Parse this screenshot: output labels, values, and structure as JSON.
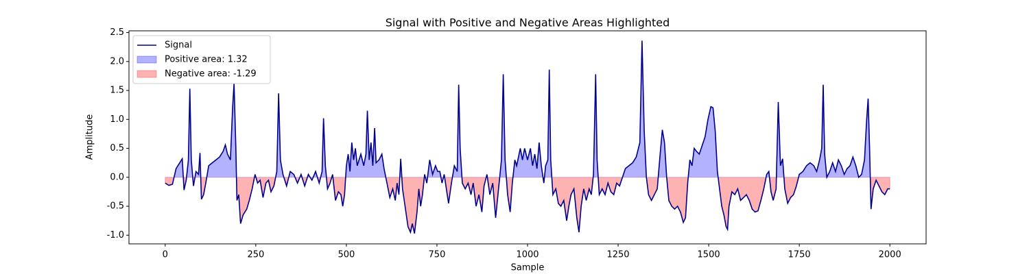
{
  "chart_data": {
    "type": "line",
    "title": "Signal with Positive and Negative Areas Highlighted",
    "x_label": "Sample",
    "y_label": "Amplitude",
    "xlim": [
      -100,
      2100
    ],
    "ylim": [
      -1.15,
      2.53
    ],
    "xticks": [
      0,
      250,
      500,
      750,
      1000,
      1250,
      1500,
      1750,
      2000
    ],
    "yticks": [
      {
        "value": -1,
        "label": "-1.0"
      },
      -0.5,
      {
        "value": 0,
        "label": "0.0"
      },
      0.5,
      {
        "value": 1,
        "label": "1.0"
      },
      1.5,
      {
        "value": 2,
        "label": "2.0"
      },
      2.5
    ],
    "legend": "upper left",
    "series": [
      {
        "name": "Signal",
        "color": "#00008b",
        "x": [
          0,
          10,
          20,
          30,
          40,
          47,
          52,
          58,
          64,
          68,
          72,
          78,
          85,
          92,
          96,
          100,
          106,
          112,
          120,
          130,
          140,
          150,
          160,
          166,
          172,
          180,
          186,
          190,
          195,
          198,
          203,
          208,
          215,
          225,
          232,
          240,
          248,
          255,
          262,
          270,
          278,
          285,
          292,
          300,
          308,
          313,
          318,
          325,
          335,
          345,
          355,
          365,
          375,
          385,
          395,
          405,
          415,
          425,
          433,
          437,
          442,
          448,
          455,
          462,
          470,
          478,
          485,
          490,
          495,
          500,
          505,
          510,
          515,
          520,
          525,
          530,
          540,
          548,
          554,
          558,
          563,
          568,
          573,
          578,
          582,
          590,
          598,
          604,
          612,
          620,
          628,
          635,
          640,
          645,
          650,
          655,
          662,
          670,
          677,
          682,
          688,
          695,
          700,
          705,
          710,
          716,
          722,
          730,
          738,
          746,
          752,
          758,
          764,
          770,
          776,
          782,
          790,
          798,
          806,
          810,
          814,
          820,
          828,
          836,
          844,
          850,
          858,
          866,
          874,
          880,
          888,
          896,
          904,
          912,
          920,
          928,
          933,
          938,
          945,
          952,
          958,
          965,
          970,
          980,
          986,
          992,
          1000,
          1008,
          1014,
          1020,
          1026,
          1032,
          1038,
          1045,
          1050,
          1056,
          1060,
          1064,
          1070,
          1078,
          1085,
          1092,
          1100,
          1108,
          1114,
          1120,
          1128,
          1136,
          1142,
          1148,
          1155,
          1162,
          1170,
          1176,
          1182,
          1188,
          1192,
          1198,
          1206,
          1214,
          1222,
          1230,
          1238,
          1246,
          1254,
          1262,
          1270,
          1280,
          1290,
          1300,
          1310,
          1316,
          1322,
          1328,
          1334,
          1342,
          1350,
          1358,
          1366,
          1372,
          1378,
          1384,
          1390,
          1398,
          1406,
          1414,
          1422,
          1430,
          1436,
          1442,
          1448,
          1454,
          1460,
          1466,
          1474,
          1482,
          1490,
          1498,
          1506,
          1512,
          1518,
          1524,
          1530,
          1536,
          1542,
          1548,
          1552,
          1556,
          1564,
          1572,
          1580,
          1588,
          1596,
          1604,
          1612,
          1620,
          1628,
          1636,
          1644,
          1652,
          1660,
          1666,
          1672,
          1678,
          1686,
          1692,
          1698,
          1704,
          1710,
          1718,
          1726,
          1734,
          1742,
          1750,
          1760,
          1770,
          1780,
          1790,
          1798,
          1806,
          1812,
          1816,
          1820,
          1826,
          1834,
          1842,
          1850,
          1858,
          1866,
          1874,
          1882,
          1890,
          1898,
          1906,
          1914,
          1922,
          1930,
          1936,
          1940,
          1944,
          1948,
          1954,
          1962,
          1970,
          1978,
          1986,
          1994,
          2000
        ],
        "values": [
          -0.1,
          -0.14,
          -0.12,
          0.15,
          0.25,
          0.32,
          -0.22,
          -0.05,
          0.3,
          1.53,
          0.3,
          -0.15,
          0.1,
          0.05,
          0.42,
          -0.38,
          -0.3,
          -0.1,
          0.2,
          0.25,
          0.3,
          0.35,
          0.45,
          0.56,
          0.4,
          0.3,
          1.2,
          1.62,
          0.5,
          -0.4,
          -0.3,
          -0.8,
          -0.65,
          -0.55,
          -0.4,
          -0.2,
          0.05,
          -0.1,
          -0.05,
          -0.35,
          -0.1,
          -0.05,
          -0.25,
          -0.15,
          0.1,
          1.45,
          0.3,
          0.05,
          -0.15,
          0.1,
          0.05,
          -0.1,
          0.05,
          -0.15,
          0.05,
          -0.05,
          0.1,
          -0.1,
          0.1,
          1.02,
          0.2,
          -0.2,
          -0.1,
          0.05,
          -0.4,
          -0.25,
          -0.3,
          -0.5,
          -0.3,
          0.2,
          0.4,
          0.1,
          0.6,
          0.3,
          0.5,
          0.2,
          0.4,
          0.2,
          0.4,
          1.15,
          0.3,
          0.6,
          0.2,
          0.85,
          0.25,
          0.3,
          0.4,
          0.15,
          -0.1,
          -0.35,
          -0.2,
          -0.4,
          -0.1,
          -0.3,
          0.32,
          -0.2,
          -0.5,
          -0.85,
          -0.95,
          -0.8,
          -0.97,
          -0.6,
          -0.2,
          -0.5,
          -0.3,
          0.05,
          -0.1,
          0.3,
          0.05,
          0.2,
          0.1,
          0.1,
          -0.1,
          0.05,
          -0.2,
          -0.45,
          -0.1,
          0.2,
          0.1,
          1.6,
          0.5,
          -0.1,
          -0.2,
          -0.1,
          -0.3,
          -0.1,
          -0.5,
          -0.3,
          -0.6,
          -0.15,
          0.05,
          -0.3,
          -0.1,
          -0.7,
          -0.2,
          0.3,
          1.78,
          0.3,
          -0.3,
          -0.6,
          -0.1,
          0.3,
          0.2,
          0.5,
          0.3,
          0.5,
          0.3,
          0.5,
          0.2,
          0.4,
          0.15,
          0.6,
          0.2,
          -0.1,
          0.2,
          0.3,
          1.86,
          0.3,
          -0.3,
          -0.2,
          -0.45,
          -0.5,
          -0.4,
          -0.75,
          -0.5,
          -0.3,
          -0.2,
          -0.7,
          -0.95,
          -0.5,
          -0.2,
          -0.4,
          -0.2,
          -0.3,
          0.05,
          1.78,
          0.3,
          -0.3,
          -0.2,
          -0.3,
          -0.1,
          -0.25,
          -0.3,
          -0.1,
          -0.15,
          0.0,
          0.15,
          0.2,
          0.25,
          0.35,
          0.6,
          2.36,
          0.8,
          0.0,
          -0.3,
          -0.4,
          -0.3,
          -0.2,
          0.4,
          0.82,
          0.6,
          0.0,
          -0.4,
          -0.5,
          -0.55,
          -0.5,
          -0.6,
          -0.78,
          -0.7,
          -0.1,
          0.3,
          0.2,
          0.5,
          0.45,
          0.4,
          0.55,
          0.7,
          1.0,
          1.22,
          1.2,
          0.8,
          0.1,
          -0.2,
          -0.5,
          -0.65,
          -0.85,
          -0.9,
          -0.5,
          -0.25,
          -0.3,
          -0.2,
          -0.4,
          -0.35,
          -0.3,
          -0.4,
          -0.55,
          -0.6,
          -0.58,
          -0.4,
          -0.2,
          0.05,
          0.1,
          -0.25,
          -0.4,
          -0.2,
          1.3,
          0.2,
          0.32,
          -0.2,
          -0.45,
          -0.35,
          -0.3,
          -0.15,
          0.05,
          0.1,
          0.2,
          0.25,
          0.2,
          0.1,
          0.3,
          0.5,
          1.6,
          0.4,
          0.0,
          0.1,
          0.25,
          0.1,
          0.3,
          0.2,
          0.05,
          0.15,
          0.2,
          0.35,
          0.2,
          0.0,
          0.05,
          0.3,
          1.0,
          1.36,
          0.5,
          -0.55,
          -0.2,
          -0.05,
          -0.15,
          -0.25,
          -0.3,
          -0.2,
          -0.2
        ]
      }
    ],
    "fills": [
      {
        "name": "Positive area: 1.32",
        "color": "#0000ff",
        "side": "above"
      },
      {
        "name": "Negative area: -1.29",
        "color": "#ff0000",
        "side": "below"
      }
    ]
  }
}
